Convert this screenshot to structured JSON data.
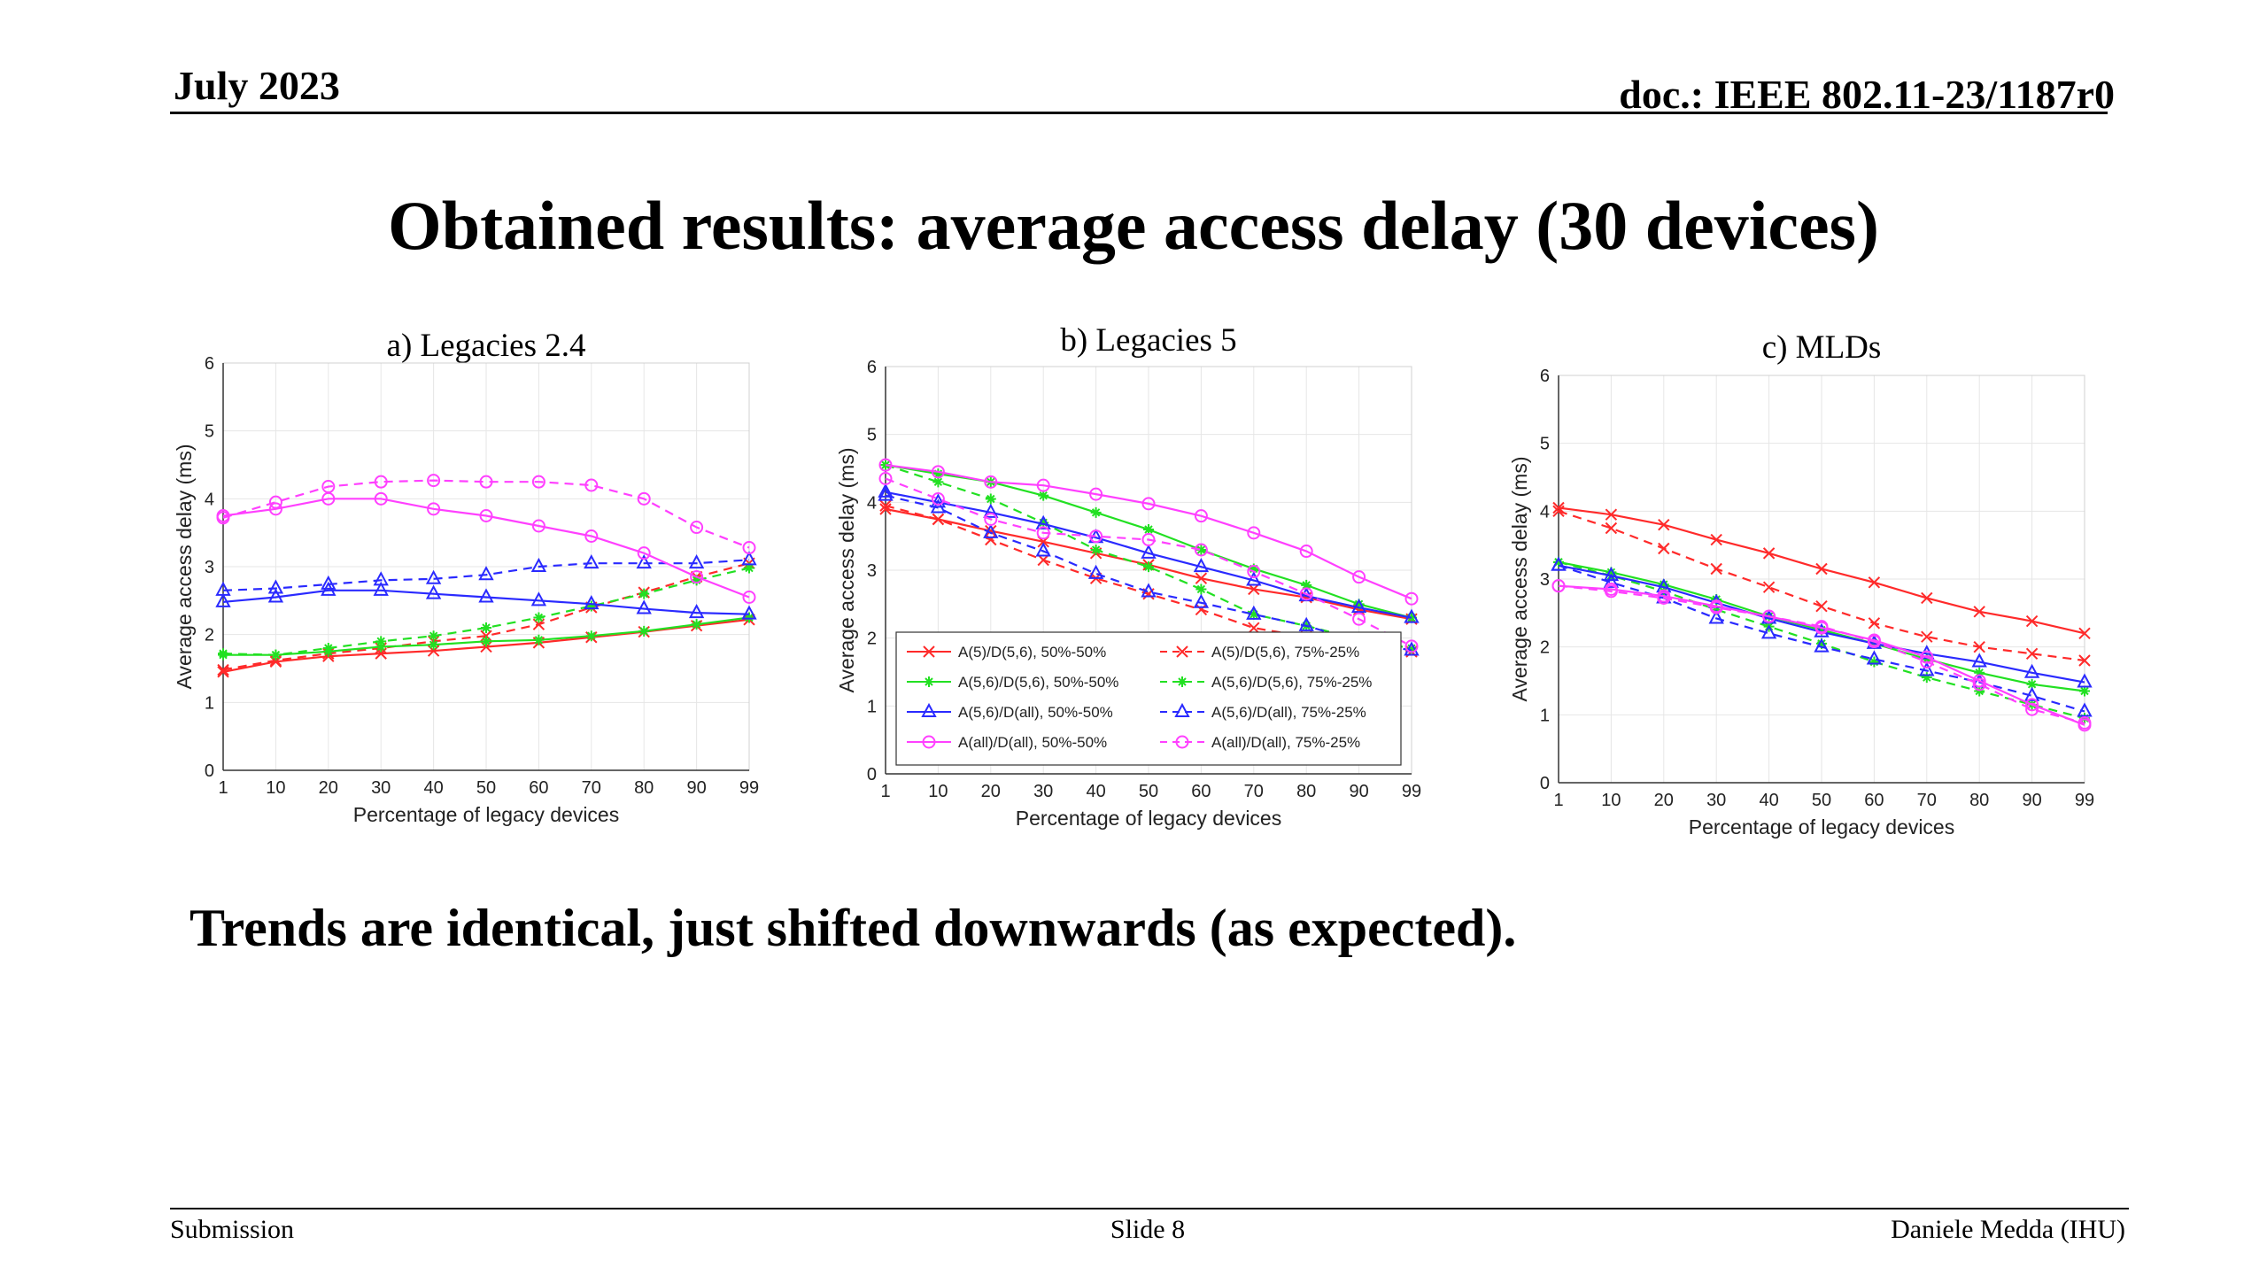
{
  "header": {
    "date": "July 2023",
    "doc": "doc.: IEEE 802.11-23/1187r0"
  },
  "slide_title": "Obtained results: average access delay (30 devices)",
  "statement": "Trends are identical, just shifted downwards (as expected).",
  "footer": {
    "left": "Submission",
    "center": "Slide 8",
    "right": "Daniele Medda (IHU)"
  },
  "colors": {
    "red": "#ff2a2a",
    "green": "#22e022",
    "blue": "#2a2aff",
    "magenta": "#ff40ff"
  },
  "chart_data": [
    {
      "type": "line",
      "title": "a) Legacies 2.4",
      "xlabel": "Percentage of legacy devices",
      "ylabel": "Average access delay (ms)",
      "ylim": [
        0,
        6
      ],
      "yticks": [
        "0",
        "1",
        "2",
        "3",
        "4",
        "5",
        "6"
      ],
      "x": [
        "1",
        "10",
        "20",
        "30",
        "40",
        "50",
        "60",
        "70",
        "80",
        "90",
        "99"
      ],
      "grid": true,
      "series": [
        {
          "color": "red",
          "dash": false,
          "marker": "x",
          "values": [
            1.45,
            1.6,
            1.68,
            1.72,
            1.76,
            1.82,
            1.88,
            1.96,
            2.04,
            2.13,
            2.22
          ]
        },
        {
          "color": "red",
          "dash": true,
          "marker": "x",
          "values": [
            1.48,
            1.62,
            1.72,
            1.8,
            1.9,
            1.98,
            2.15,
            2.4,
            2.62,
            2.85,
            3.05
          ]
        },
        {
          "color": "green",
          "dash": false,
          "marker": "star",
          "values": [
            1.7,
            1.7,
            1.75,
            1.82,
            1.85,
            1.9,
            1.92,
            1.98,
            2.05,
            2.15,
            2.25
          ]
        },
        {
          "color": "green",
          "dash": true,
          "marker": "star",
          "values": [
            1.72,
            1.7,
            1.8,
            1.9,
            1.98,
            2.1,
            2.25,
            2.42,
            2.6,
            2.8,
            2.98
          ]
        },
        {
          "color": "blue",
          "dash": false,
          "marker": "triangle",
          "values": [
            2.48,
            2.55,
            2.65,
            2.65,
            2.6,
            2.55,
            2.5,
            2.45,
            2.38,
            2.32,
            2.3
          ]
        },
        {
          "color": "blue",
          "dash": true,
          "marker": "triangle",
          "values": [
            2.65,
            2.68,
            2.74,
            2.8,
            2.82,
            2.88,
            3.0,
            3.05,
            3.05,
            3.05,
            3.1
          ]
        },
        {
          "color": "magenta",
          "dash": false,
          "marker": "circle",
          "values": [
            3.75,
            3.85,
            4.0,
            4.0,
            3.85,
            3.75,
            3.6,
            3.45,
            3.2,
            2.85,
            2.55
          ]
        },
        {
          "color": "magenta",
          "dash": true,
          "marker": "circle",
          "values": [
            3.72,
            3.95,
            4.18,
            4.25,
            4.27,
            4.25,
            4.25,
            4.2,
            4.0,
            3.58,
            3.28
          ]
        }
      ]
    },
    {
      "type": "line",
      "title": "b) Legacies 5",
      "xlabel": "Percentage of legacy devices",
      "ylabel": "Average access delay (ms)",
      "ylim": [
        0,
        6
      ],
      "yticks": [
        "0",
        "1",
        "2",
        "3",
        "4",
        "5",
        "6"
      ],
      "x": [
        "1",
        "10",
        "20",
        "30",
        "40",
        "50",
        "60",
        "70",
        "80",
        "90",
        "99"
      ],
      "grid": true,
      "legend_position": "bottom-left",
      "legend": [
        "A(5)/D(5,6), 50%-50%",
        "A(5)/D(5,6), 75%-25%",
        "A(5,6)/D(5,6), 50%-50%",
        "A(5,6)/D(5,6), 75%-25%",
        "A(5,6)/D(all), 50%-50%",
        "A(5,6)/D(all), 75%-25%",
        "A(all)/D(all), 50%-50%",
        "A(all)/D(all), 75%-25%"
      ],
      "series": [
        {
          "color": "red",
          "dash": false,
          "marker": "x",
          "values": [
            3.9,
            3.75,
            3.58,
            3.42,
            3.25,
            3.08,
            2.88,
            2.72,
            2.6,
            2.42,
            2.28
          ]
        },
        {
          "color": "red",
          "dash": true,
          "marker": "x",
          "values": [
            3.95,
            3.75,
            3.45,
            3.15,
            2.88,
            2.65,
            2.42,
            2.15,
            2.02,
            1.88,
            1.8
          ]
        },
        {
          "color": "green",
          "dash": false,
          "marker": "star",
          "values": [
            4.55,
            4.42,
            4.3,
            4.1,
            3.85,
            3.6,
            3.3,
            3.02,
            2.78,
            2.5,
            2.3
          ]
        },
        {
          "color": "green",
          "dash": true,
          "marker": "star",
          "values": [
            4.55,
            4.3,
            4.05,
            3.7,
            3.3,
            3.05,
            2.72,
            2.35,
            2.18,
            1.98,
            1.85
          ]
        },
        {
          "color": "blue",
          "dash": false,
          "marker": "triangle",
          "values": [
            4.15,
            4.0,
            3.85,
            3.68,
            3.48,
            3.25,
            3.05,
            2.85,
            2.62,
            2.45,
            2.3
          ]
        },
        {
          "color": "blue",
          "dash": true,
          "marker": "triangle",
          "values": [
            4.1,
            3.92,
            3.55,
            3.28,
            2.95,
            2.68,
            2.52,
            2.35,
            2.18,
            1.95,
            1.82
          ]
        },
        {
          "color": "magenta",
          "dash": false,
          "marker": "circle",
          "values": [
            4.55,
            4.45,
            4.3,
            4.25,
            4.12,
            3.98,
            3.8,
            3.55,
            3.28,
            2.9,
            2.58
          ]
        },
        {
          "color": "magenta",
          "dash": true,
          "marker": "circle",
          "values": [
            4.35,
            4.05,
            3.75,
            3.55,
            3.5,
            3.45,
            3.3,
            2.98,
            2.65,
            2.28,
            1.88
          ]
        }
      ]
    },
    {
      "type": "line",
      "title": "c) MLDs",
      "xlabel": "Percentage of legacy devices",
      "ylabel": "Average access delay (ms)",
      "ylim": [
        0,
        6
      ],
      "yticks": [
        "0",
        "1",
        "2",
        "3",
        "4",
        "5",
        "6"
      ],
      "x": [
        "1",
        "10",
        "20",
        "30",
        "40",
        "50",
        "60",
        "70",
        "80",
        "90",
        "99"
      ],
      "grid": true,
      "series": [
        {
          "color": "red",
          "dash": false,
          "marker": "x",
          "values": [
            4.05,
            3.95,
            3.8,
            3.58,
            3.38,
            3.15,
            2.95,
            2.72,
            2.52,
            2.38,
            2.2
          ]
        },
        {
          "color": "red",
          "dash": true,
          "marker": "x",
          "values": [
            4.0,
            3.75,
            3.45,
            3.15,
            2.88,
            2.6,
            2.35,
            2.15,
            2.0,
            1.9,
            1.8
          ]
        },
        {
          "color": "green",
          "dash": false,
          "marker": "star",
          "values": [
            3.25,
            3.1,
            2.92,
            2.7,
            2.45,
            2.25,
            2.05,
            1.82,
            1.62,
            1.45,
            1.35
          ]
        },
        {
          "color": "green",
          "dash": true,
          "marker": "star",
          "values": [
            3.25,
            3.05,
            2.82,
            2.55,
            2.3,
            2.05,
            1.78,
            1.55,
            1.35,
            1.15,
            0.95
          ]
        },
        {
          "color": "blue",
          "dash": false,
          "marker": "triangle",
          "values": [
            3.2,
            3.05,
            2.88,
            2.65,
            2.42,
            2.22,
            2.05,
            1.9,
            1.78,
            1.62,
            1.48
          ]
        },
        {
          "color": "blue",
          "dash": true,
          "marker": "triangle",
          "values": [
            3.2,
            2.95,
            2.72,
            2.42,
            2.2,
            2.0,
            1.82,
            1.65,
            1.48,
            1.28,
            1.05
          ]
        },
        {
          "color": "magenta",
          "dash": false,
          "marker": "circle",
          "values": [
            2.9,
            2.85,
            2.75,
            2.6,
            2.45,
            2.28,
            2.1,
            1.85,
            1.5,
            1.15,
            0.85
          ]
        },
        {
          "color": "magenta",
          "dash": true,
          "marker": "circle",
          "values": [
            2.9,
            2.82,
            2.72,
            2.58,
            2.45,
            2.3,
            2.08,
            1.78,
            1.45,
            1.08,
            0.88
          ]
        }
      ]
    }
  ]
}
